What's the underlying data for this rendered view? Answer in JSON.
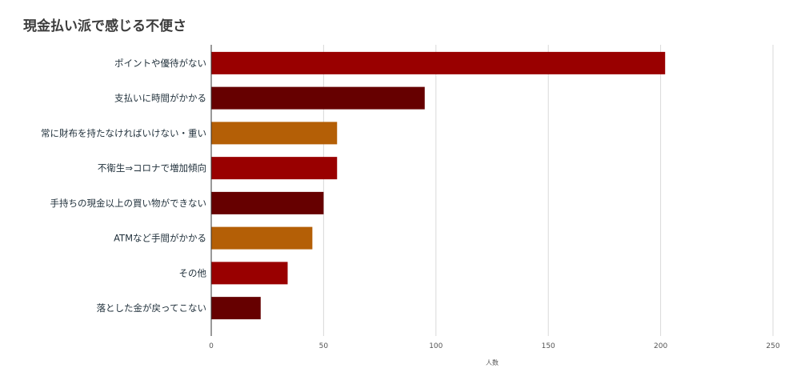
{
  "chart_data": {
    "type": "bar",
    "orientation": "horizontal",
    "title": "現金払い派で感じる不便さ",
    "xlabel": "人数",
    "ylabel": "",
    "categories": [
      "ポイントや優待がない",
      "支払いに時間がかかる",
      "常に財布を持たなければいけない・重い",
      "不衛生⇒コロナで増加傾向",
      "手持ちの現金以上の買い物ができない",
      "ATMなど手間がかかる",
      "その他",
      "落とした金が戻ってこない"
    ],
    "values": [
      202,
      95,
      56,
      56,
      50,
      45,
      34,
      22
    ],
    "bar_colors": [
      "#990000",
      "#660000",
      "#b45f06",
      "#990000",
      "#660000",
      "#b45f06",
      "#990000",
      "#660000"
    ],
    "xlim": [
      0,
      250
    ],
    "xticks": [
      0,
      50,
      100,
      150,
      200,
      250
    ],
    "xtick_labels": [
      "0",
      "50",
      "100",
      "150",
      "200",
      "250"
    ],
    "grid": true,
    "legend": "none"
  }
}
